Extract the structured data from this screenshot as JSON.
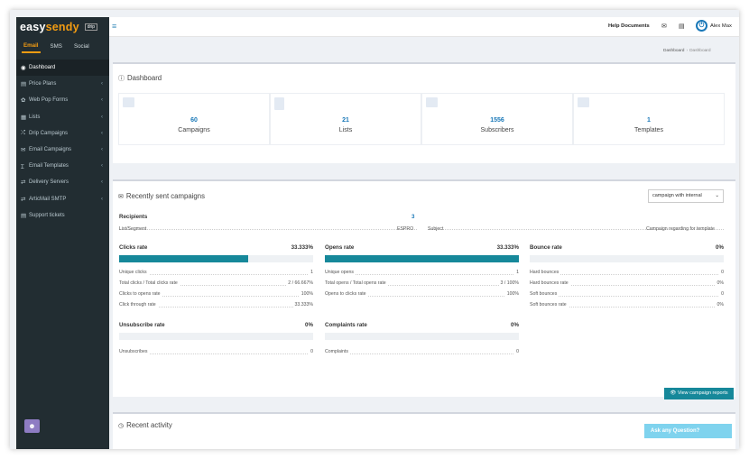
{
  "brand": {
    "name_part1": "easy",
    "name_part2": "sendy",
    "badge": "drip"
  },
  "channel_tabs": [
    "Email",
    "SMS",
    "Social"
  ],
  "sidebar": {
    "items": [
      {
        "label": "Dashboard",
        "icon": "dashboard-icon",
        "glyph": "◉",
        "active": true,
        "has_chevron": false
      },
      {
        "label": "Price Plans",
        "icon": "credit-card-icon",
        "glyph": "▤",
        "active": false,
        "has_chevron": true
      },
      {
        "label": "Web Pop Forms",
        "icon": "gear-icon",
        "glyph": "✿",
        "active": false,
        "has_chevron": true
      },
      {
        "label": "Lists",
        "icon": "list-icon",
        "glyph": "▦",
        "active": false,
        "has_chevron": true
      },
      {
        "label": "Drip Campaigns",
        "icon": "shuffle-icon",
        "glyph": "⤮",
        "active": false,
        "has_chevron": true
      },
      {
        "label": "Email Campaigns",
        "icon": "envelope-icon",
        "glyph": "✉",
        "active": false,
        "has_chevron": true
      },
      {
        "label": "Email Templates",
        "icon": "text-cursor-icon",
        "glyph": "Ɪ",
        "active": false,
        "has_chevron": true
      },
      {
        "label": "Delivery Servers",
        "icon": "exchange-icon",
        "glyph": "⇄",
        "active": false,
        "has_chevron": true
      },
      {
        "label": "ArticMail SMTP",
        "icon": "exchange-icon",
        "glyph": "⇄",
        "active": false,
        "has_chevron": true
      },
      {
        "label": "Support tickets",
        "icon": "ticket-icon",
        "glyph": "▤",
        "active": false,
        "has_chevron": false
      }
    ]
  },
  "topbar": {
    "help": "Help Documents",
    "user": "Alex Max"
  },
  "breadcrumb": {
    "home": "Dashboard",
    "current": "Dashboard"
  },
  "dashboard": {
    "title": "Dashboard",
    "stats": [
      {
        "value": "60",
        "label": "Campaigns"
      },
      {
        "value": "21",
        "label": "Lists"
      },
      {
        "value": "1556",
        "label": "Subscribers"
      },
      {
        "value": "1",
        "label": "Templates"
      }
    ]
  },
  "campaigns": {
    "title": "Recently sent campaigns",
    "select_value": "campaign with internal",
    "recipients_label": "Recipients",
    "recipients_value": "3",
    "list_segment_label": "List/Segment",
    "list_segment_value": "ESPRO",
    "subject_label": "Subject",
    "subject_value": "Campaign regarding for template",
    "clicks": {
      "title": "Clicks rate",
      "pct": "33.333%",
      "fill": 0.667,
      "rows": [
        {
          "k": "Unique clicks",
          "v": "1"
        },
        {
          "k": "Total clicks / Total clicks rate",
          "v": "2 / 66.667%"
        },
        {
          "k": "Clicks to opens rate",
          "v": "100%"
        },
        {
          "k": "Click through rate",
          "v": "33.333%"
        }
      ]
    },
    "opens": {
      "title": "Opens rate",
      "pct": "33.333%",
      "fill": 1.0,
      "rows": [
        {
          "k": "Unique opens",
          "v": "1"
        },
        {
          "k": "Total opens / Total opens rate",
          "v": "3 / 100%"
        },
        {
          "k": "Opens to clicks rate",
          "v": "100%"
        }
      ]
    },
    "bounce": {
      "title": "Bounce rate",
      "pct": "0%",
      "fill": 0,
      "rows": [
        {
          "k": "Hard bounces",
          "v": "0"
        },
        {
          "k": "Hard bounces rate",
          "v": "0%"
        },
        {
          "k": "Soft bounces",
          "v": "0"
        },
        {
          "k": "Soft bounces rate",
          "v": "0%"
        }
      ]
    },
    "unsubscribe": {
      "title": "Unsubscribe rate",
      "pct": "0%",
      "fill": 0,
      "rows": [
        {
          "k": "Unsubscribes",
          "v": "0"
        }
      ]
    },
    "complaints": {
      "title": "Complaints rate",
      "pct": "0%",
      "fill": 0,
      "rows": [
        {
          "k": "Complaints",
          "v": "0"
        }
      ]
    },
    "report_button": "View campaign reports"
  },
  "activity": {
    "title": "Recent activity"
  },
  "ask": "Ask any Question?",
  "colors": {
    "accent": "#f39c12",
    "link": "#1978b8",
    "teal": "#16889a",
    "sidebar": "#222d32"
  }
}
